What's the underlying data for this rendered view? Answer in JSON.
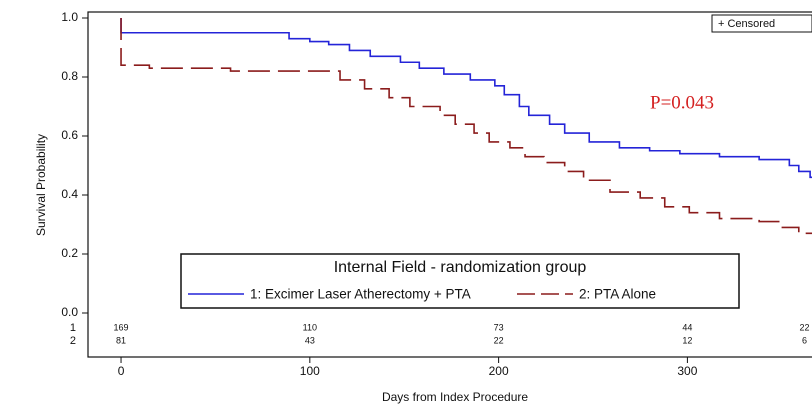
{
  "chart_data": {
    "type": "step",
    "ylabel": "Survival Probability",
    "xlabel": "Days from Index Procedure",
    "xlim": [
      -17.5,
      366
    ],
    "ylim": [
      0,
      1
    ],
    "xticks": [
      0,
      100,
      200,
      300
    ],
    "yticks": [
      {
        "value": 0,
        "label": "0.0"
      },
      0.2,
      0.4,
      0.6,
      0.8,
      {
        "value": 1,
        "label": "1.0"
      }
    ],
    "legend_title": "Internal Field - randomization group",
    "censored_label": "+ Censored",
    "annotation": "P=0.043",
    "series": [
      {
        "name": "1: Excimer Laser Atherectomy + PTA",
        "color": "#2424d8",
        "dashed": false,
        "x": [
          0,
          0,
          89,
          100,
          110,
          121,
          132,
          148,
          158,
          171,
          185,
          198,
          203,
          211,
          216,
          227,
          235,
          248,
          264,
          280,
          296,
          317,
          338,
          354,
          359,
          365
        ],
        "values": [
          1.0,
          0.95,
          0.93,
          0.92,
          0.91,
          0.89,
          0.87,
          0.85,
          0.83,
          0.81,
          0.79,
          0.77,
          0.74,
          0.7,
          0.67,
          0.64,
          0.61,
          0.58,
          0.56,
          0.55,
          0.54,
          0.53,
          0.52,
          0.5,
          0.48,
          0.46
        ]
      },
      {
        "name": "2: PTA  Alone",
        "color": "#8b1c1c",
        "dashed": true,
        "x": [
          0,
          0,
          15,
          58,
          116,
          129,
          142,
          153,
          169,
          177,
          187,
          195,
          206,
          214,
          224,
          235,
          245,
          259,
          275,
          288,
          301,
          317,
          338,
          349,
          359
        ],
        "values": [
          1.0,
          0.84,
          0.83,
          0.82,
          0.79,
          0.76,
          0.73,
          0.7,
          0.67,
          0.64,
          0.61,
          0.58,
          0.56,
          0.53,
          0.51,
          0.48,
          0.45,
          0.41,
          0.39,
          0.36,
          0.34,
          0.32,
          0.31,
          0.29,
          0.27
        ]
      }
    ],
    "at_risk": {
      "groups": [
        "1",
        "2"
      ],
      "x": [
        0,
        100,
        200,
        300,
        362
      ],
      "counts": [
        [
          169,
          110,
          73,
          44,
          22
        ],
        [
          81,
          43,
          22,
          12,
          6
        ]
      ]
    }
  }
}
